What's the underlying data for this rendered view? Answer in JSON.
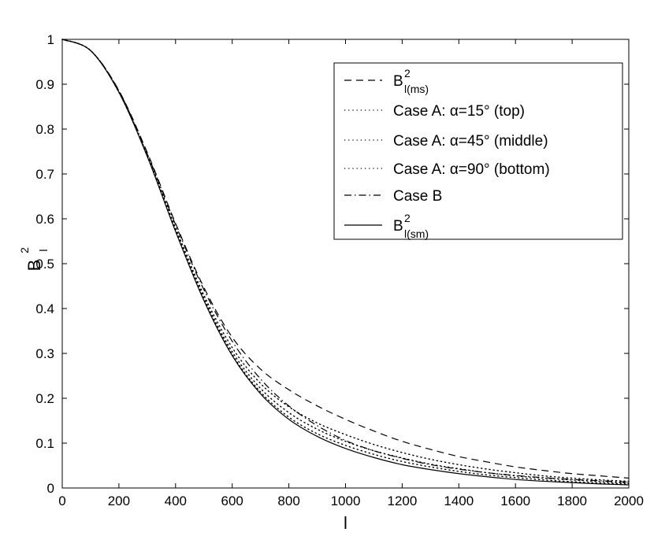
{
  "chart_data": {
    "type": "line",
    "title": "",
    "xlabel": "l",
    "ylabel_base": "B",
    "ylabel_sup": "2",
    "ylabel_sub": "l",
    "xlim": [
      0,
      2000
    ],
    "ylim": [
      0,
      1
    ],
    "xticks": [
      0,
      200,
      400,
      600,
      800,
      1000,
      1200,
      1400,
      1600,
      1800,
      2000
    ],
    "yticks": [
      0,
      0.1,
      0.2,
      0.3,
      0.4,
      0.5,
      0.6,
      0.7,
      0.8,
      0.9,
      1
    ],
    "grid": false,
    "legend_position": "top-right",
    "x": [
      0,
      100,
      200,
      300,
      400,
      500,
      600,
      700,
      800,
      900,
      1000,
      1100,
      1200,
      1300,
      1400,
      1500,
      1600,
      1700,
      1800,
      1900,
      2000
    ],
    "series": [
      {
        "legend_base": "B",
        "legend_sup": "2",
        "legend_sub": "l(ms)",
        "style": "dashed",
        "values": [
          1.0,
          0.975,
          0.886,
          0.748,
          0.59,
          0.447,
          0.336,
          0.265,
          0.219,
          0.183,
          0.153,
          0.127,
          0.104,
          0.086,
          0.07,
          0.058,
          0.047,
          0.039,
          0.032,
          0.027,
          0.022
        ]
      },
      {
        "legend_text": "Case A: α=15° (top)",
        "style": "dotted",
        "values": [
          1.0,
          0.975,
          0.884,
          0.743,
          0.58,
          0.43,
          0.313,
          0.233,
          0.181,
          0.145,
          0.119,
          0.097,
          0.079,
          0.064,
          0.052,
          0.042,
          0.034,
          0.027,
          0.022,
          0.018,
          0.015
        ]
      },
      {
        "legend_text": "Case A: α=45° (middle)",
        "style": "dotted",
        "values": [
          1.0,
          0.975,
          0.883,
          0.741,
          0.576,
          0.424,
          0.304,
          0.222,
          0.168,
          0.131,
          0.104,
          0.083,
          0.067,
          0.053,
          0.043,
          0.034,
          0.027,
          0.022,
          0.018,
          0.014,
          0.011
        ]
      },
      {
        "legend_text": "Case A: α=90° (bottom)",
        "style": "dotted",
        "values": [
          1.0,
          0.975,
          0.882,
          0.74,
          0.573,
          0.42,
          0.298,
          0.214,
          0.158,
          0.121,
          0.095,
          0.075,
          0.059,
          0.047,
          0.037,
          0.029,
          0.023,
          0.018,
          0.014,
          0.011,
          0.009
        ]
      },
      {
        "legend_text": "Case B",
        "style": "dashdot",
        "values": [
          1.0,
          0.975,
          0.885,
          0.745,
          0.587,
          0.442,
          0.327,
          0.243,
          0.183,
          0.139,
          0.106,
          0.083,
          0.066,
          0.052,
          0.042,
          0.034,
          0.028,
          0.023,
          0.019,
          0.016,
          0.013
        ]
      },
      {
        "legend_base": "B",
        "legend_sup": "2",
        "legend_sub": "l(sm)",
        "style": "solid",
        "values": [
          1.0,
          0.975,
          0.882,
          0.739,
          0.572,
          0.418,
          0.295,
          0.21,
          0.153,
          0.115,
          0.088,
          0.068,
          0.052,
          0.041,
          0.032,
          0.025,
          0.019,
          0.015,
          0.012,
          0.009,
          0.007
        ]
      }
    ]
  }
}
